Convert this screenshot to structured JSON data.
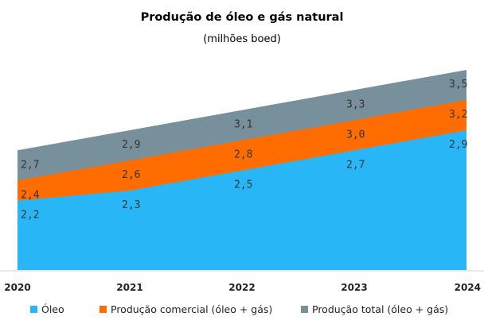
{
  "chart_data": {
    "type": "area",
    "title": "Produção de óleo e gás natural",
    "subtitle": "(milhões boed)",
    "categories": [
      "2020",
      "2021",
      "2022",
      "2023",
      "2024"
    ],
    "series": [
      {
        "name": "Óleo",
        "values": [
          2.2,
          2.3,
          2.5,
          2.7,
          2.9
        ],
        "labels": [
          "2,2",
          "2,3",
          "2,5",
          "2,7",
          "2,9"
        ],
        "color": "#29b6f6"
      },
      {
        "name": "Produção comercial (óleo + gás)",
        "values": [
          2.4,
          2.6,
          2.8,
          3.0,
          3.2
        ],
        "labels": [
          "2,4",
          "2,6",
          "2,8",
          "3,0",
          "3,2"
        ],
        "color": "#ff6d00"
      },
      {
        "name": "Produção total (óleo + gás)",
        "values": [
          2.7,
          2.9,
          3.1,
          3.3,
          3.5
        ],
        "labels": [
          "2,7",
          "2,9",
          "3,1",
          "3,3",
          "3,5"
        ],
        "color": "#78909c"
      }
    ],
    "grid": false,
    "legend_position": "bottom"
  }
}
